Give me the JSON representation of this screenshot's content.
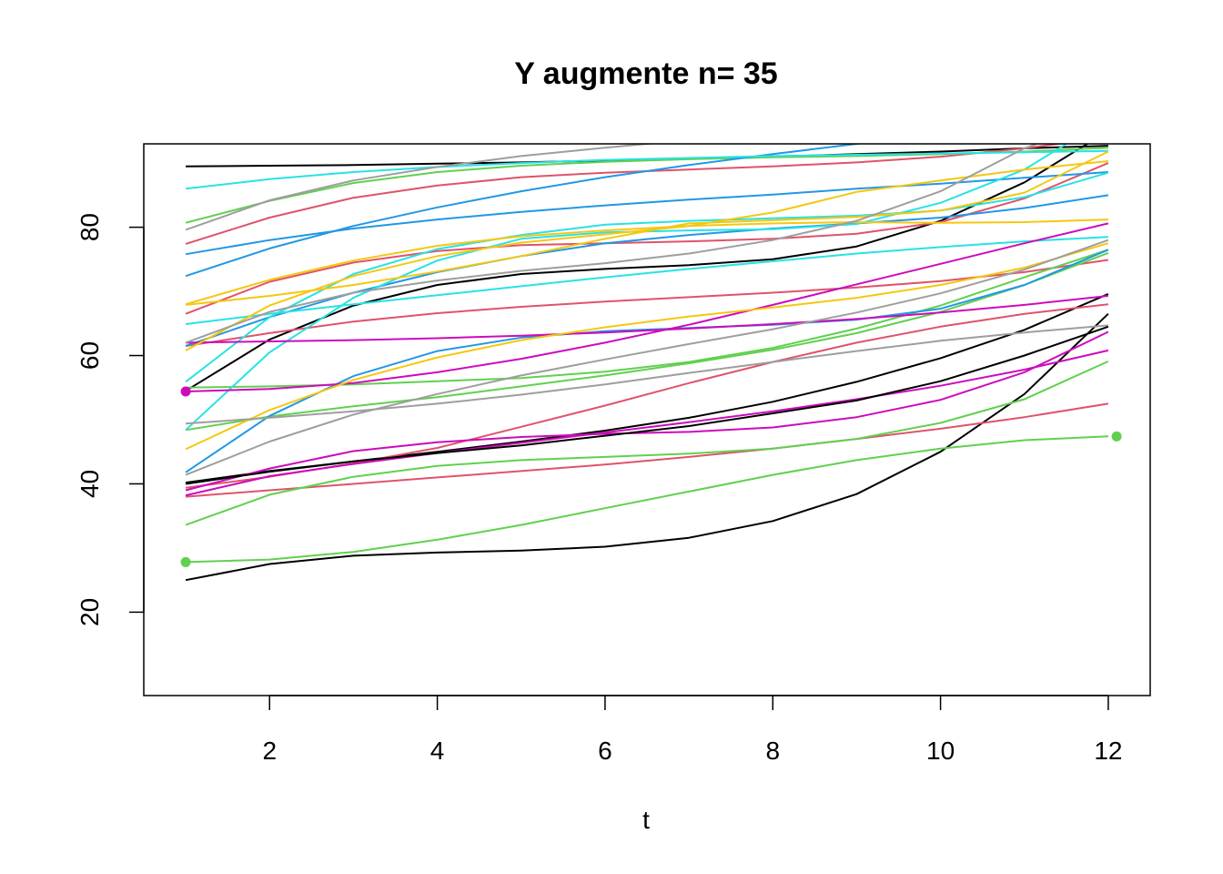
{
  "chart_data": {
    "type": "line",
    "title": "Y augmente n= 35",
    "xlabel": "t",
    "ylabel": "",
    "xlim": [
      0.5,
      12.5
    ],
    "ylim": [
      7,
      93
    ],
    "xticks": [
      2,
      4,
      6,
      8,
      10,
      12
    ],
    "yticks": [
      20,
      40,
      60,
      80
    ],
    "grid": false,
    "x": [
      1,
      2,
      3,
      4,
      5,
      6,
      7,
      8,
      9,
      10,
      11,
      12
    ],
    "series": [
      {
        "color": "#000000",
        "values": [
          89.5,
          89.6,
          89.7,
          89.9,
          90.1,
          90.4,
          90.7,
          91.0,
          91.4,
          91.8,
          92.3,
          92.7
        ]
      },
      {
        "color": "#000000",
        "values": [
          54.5,
          62.5,
          67.8,
          71.0,
          72.7,
          73.5,
          74.1,
          75.0,
          77.0,
          81.0,
          87.0,
          95.0
        ]
      },
      {
        "color": "#000000",
        "values": [
          40.2,
          42.0,
          43.5,
          45.0,
          46.6,
          48.3,
          50.3,
          52.8,
          55.9,
          59.6,
          64.0,
          69.6
        ]
      },
      {
        "color": "#000000",
        "values": [
          25.0,
          27.5,
          28.8,
          29.3,
          29.6,
          30.2,
          31.6,
          34.2,
          38.4,
          45.0,
          54.0,
          66.5
        ]
      },
      {
        "color": "#DF536B",
        "values": [
          77.4,
          81.5,
          84.6,
          86.5,
          87.8,
          88.5,
          89.0,
          89.5,
          90.1,
          91.0,
          92.3,
          94.0
        ]
      },
      {
        "color": "#DF536B",
        "values": [
          66.5,
          71.5,
          74.5,
          76.3,
          77.2,
          77.5,
          77.8,
          78.2,
          79.0,
          80.8,
          84.5,
          90.0
        ]
      },
      {
        "color": "#DF536B",
        "values": [
          61.5,
          63.5,
          65.3,
          66.6,
          67.6,
          68.4,
          69.1,
          69.8,
          70.6,
          71.6,
          73.0,
          74.9
        ]
      },
      {
        "color": "#DF536B",
        "values": [
          39.4,
          41.1,
          43.2,
          45.6,
          48.9,
          52.2,
          55.7,
          59.0,
          62.0,
          64.5,
          66.5,
          68.0
        ]
      },
      {
        "color": "#DF536B",
        "values": [
          38.0,
          39.0,
          40.0,
          41.0,
          42.0,
          43.0,
          44.2,
          45.5,
          47.0,
          48.6,
          50.4,
          52.5
        ]
      },
      {
        "color": "#61D04F",
        "values": [
          80.7,
          84.1,
          86.9,
          88.6,
          89.6,
          90.2,
          90.6,
          90.9,
          91.1,
          91.4,
          91.8,
          92.4
        ]
      },
      {
        "color": "#61D04F",
        "values": [
          55.0,
          55.2,
          55.5,
          56.0,
          56.5,
          57.5,
          59.0,
          61.2,
          64.2,
          67.8,
          72.2,
          76.5
        ]
      },
      {
        "color": "#61D04F",
        "values": [
          48.4,
          50.5,
          52.1,
          53.5,
          55.2,
          56.9,
          58.8,
          60.9,
          63.5,
          66.8,
          71.0,
          76.0
        ]
      },
      {
        "color": "#61D04F",
        "values": [
          33.6,
          38.3,
          41.1,
          42.8,
          43.7,
          44.2,
          44.7,
          45.5,
          47.0,
          49.5,
          53.2,
          59.1
        ]
      },
      {
        "color": "#61D04F",
        "values": [
          27.8,
          28.2,
          29.4,
          31.3,
          33.6,
          36.2,
          38.8,
          41.4,
          43.7,
          45.5,
          46.8,
          47.4
        ]
      },
      {
        "color": "#2297E6",
        "values": [
          75.8,
          78.0,
          79.8,
          81.2,
          82.4,
          83.4,
          84.3,
          85.1,
          86.0,
          86.8,
          87.7,
          88.6
        ]
      },
      {
        "color": "#2297E6",
        "values": [
          72.4,
          76.7,
          80.2,
          83.1,
          85.6,
          87.8,
          89.7,
          91.4,
          93.0,
          94.5,
          96.0,
          97.5
        ]
      },
      {
        "color": "#2297E6",
        "values": [
          61.5,
          66.0,
          69.8,
          73.0,
          75.5,
          77.5,
          78.8,
          79.8,
          80.6,
          81.5,
          83.0,
          85.0
        ]
      },
      {
        "color": "#2297E6",
        "values": [
          41.8,
          50.6,
          56.8,
          60.7,
          62.8,
          63.8,
          64.3,
          64.8,
          65.6,
          67.3,
          71.0,
          76.5
        ]
      },
      {
        "color": "#28E2E5",
        "values": [
          86.0,
          87.5,
          88.6,
          89.4,
          90.0,
          90.5,
          90.8,
          91.1,
          91.3,
          91.5,
          91.7,
          91.9
        ]
      },
      {
        "color": "#28E2E5",
        "values": [
          64.9,
          66.5,
          68.0,
          69.4,
          70.8,
          72.2,
          73.5,
          74.7,
          75.9,
          76.9,
          77.8,
          78.5
        ]
      },
      {
        "color": "#28E2E5",
        "values": [
          55.9,
          66.0,
          72.7,
          76.6,
          78.8,
          80.4,
          81.0,
          81.4,
          81.8,
          82.6,
          84.7,
          88.5
        ]
      },
      {
        "color": "#28E2E5",
        "values": [
          48.4,
          60.5,
          69.0,
          74.8,
          78.2,
          79.2,
          79.5,
          79.7,
          80.5,
          83.8,
          89.0,
          97.0
        ]
      },
      {
        "color": "#CD0BBC",
        "values": [
          62.0,
          62.2,
          62.4,
          62.7,
          63.1,
          63.6,
          64.2,
          64.9,
          65.7,
          66.7,
          67.9,
          69.3
        ]
      },
      {
        "color": "#CD0BBC",
        "values": [
          54.4,
          54.8,
          55.7,
          57.4,
          59.5,
          62.0,
          64.8,
          67.9,
          71.1,
          74.3,
          77.5,
          80.6
        ]
      },
      {
        "color": "#CD0BBC",
        "values": [
          39.0,
          42.4,
          45.1,
          46.5,
          47.3,
          47.8,
          48.1,
          48.8,
          50.4,
          53.1,
          57.4,
          63.7
        ]
      },
      {
        "color": "#CD0BBC",
        "values": [
          38.2,
          41.2,
          43.1,
          44.8,
          46.4,
          48.0,
          49.6,
          51.3,
          53.2,
          55.3,
          57.8,
          60.8
        ]
      },
      {
        "color": "#F5C710",
        "values": [
          68.0,
          71.8,
          74.8,
          77.1,
          78.6,
          79.5,
          80.2,
          80.6,
          80.8,
          80.7,
          80.8,
          81.2
        ]
      },
      {
        "color": "#F5C710",
        "values": [
          60.8,
          67.8,
          72.4,
          75.5,
          77.6,
          78.9,
          80.2,
          82.3,
          85.5,
          87.3,
          89.0,
          90.3
        ]
      },
      {
        "color": "#F5C710",
        "values": [
          67.9,
          69.3,
          71.0,
          73.1,
          75.5,
          78.2,
          80.6,
          81.1,
          81.6,
          82.6,
          85.4,
          91.8
        ]
      },
      {
        "color": "#F5C710",
        "values": [
          45.4,
          51.5,
          56.2,
          59.7,
          62.4,
          64.4,
          66.1,
          67.5,
          69.0,
          71.0,
          73.7,
          77.5
        ]
      },
      {
        "color": "#9E9E9E",
        "values": [
          79.6,
          84.2,
          87.3,
          89.4,
          91.1,
          92.4,
          93.6,
          94.5,
          95.4,
          96.2,
          96.9,
          97.6
        ]
      },
      {
        "color": "#9E9E9E",
        "values": [
          62.0,
          66.8,
          69.8,
          71.7,
          73.2,
          74.4,
          75.9,
          78.0,
          81.0,
          85.6,
          92.3,
          97.0
        ]
      },
      {
        "color": "#9E9E9E",
        "values": [
          41.4,
          46.6,
          50.8,
          54.0,
          56.9,
          59.4,
          61.8,
          64.1,
          66.7,
          69.7,
          73.4,
          78.0
        ]
      },
      {
        "color": "#9E9E9E",
        "values": [
          49.4,
          50.3,
          51.3,
          52.5,
          53.9,
          55.5,
          57.3,
          59.0,
          60.7,
          62.3,
          63.6,
          64.7
        ]
      },
      {
        "color": "#000000",
        "values": [
          40.0,
          41.9,
          43.5,
          44.8,
          46.0,
          47.5,
          49.0,
          51.0,
          53.0,
          56.0,
          60.0,
          64.5
        ]
      }
    ],
    "highlight_points": [
      {
        "x": 1,
        "y": 54.4,
        "color": "#CD0BBC"
      },
      {
        "x": 1,
        "y": 27.8,
        "color": "#61D04F"
      },
      {
        "x": 12.1,
        "y": 47.4,
        "color": "#61D04F"
      }
    ]
  }
}
